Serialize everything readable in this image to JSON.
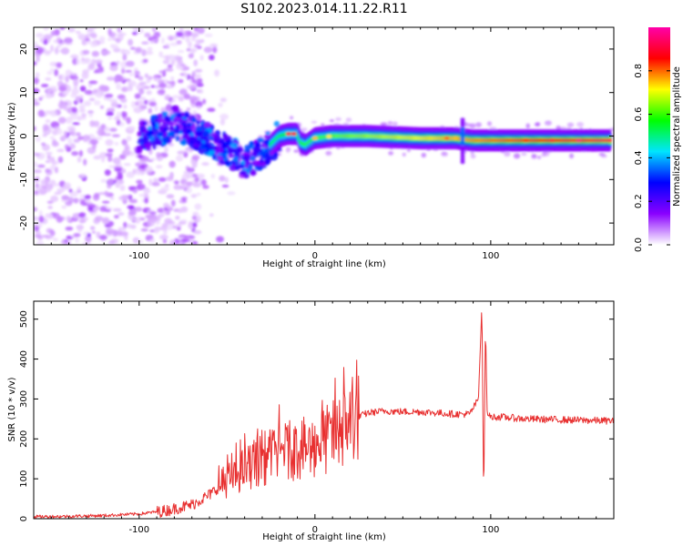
{
  "figure": {
    "title": "S102.2023.014.11.22.R11"
  },
  "chart_data": [
    {
      "type": "heatmap",
      "xlabel": "Height of straight line (km)",
      "ylabel": "Frequency (Hz)",
      "xlim": [
        -160,
        170
      ],
      "ylim": [
        -25,
        25
      ],
      "xticks": [
        -100,
        0,
        100
      ],
      "yticks": [
        -20,
        -10,
        0,
        10,
        20
      ],
      "colorbar": {
        "label": "Normalized spectral amplitude",
        "range": [
          0,
          1
        ],
        "ticks": [
          0.0,
          0.2,
          0.4,
          0.6,
          0.8
        ],
        "ticklabels": [
          "0.0",
          "0.2",
          "0.4",
          "0.6",
          "0.8"
        ],
        "colors": [
          "#ffffff",
          "#8a00ff",
          "#0000ff",
          "#00e5ff",
          "#00ff00",
          "#ffff00",
          "#ff0000",
          "#ff00aa"
        ]
      },
      "ridge": {
        "x": [
          -100,
          -90,
          -80,
          -70,
          -60,
          -50,
          -40,
          -30,
          -25,
          -20,
          -15,
          -10,
          -8,
          -5,
          0,
          10,
          30,
          60,
          80,
          90,
          100,
          130,
          165
        ],
        "freq_hz": [
          0,
          1,
          3,
          1,
          -1,
          -3,
          -6,
          -4,
          -2,
          0,
          0.5,
          0.5,
          -1.5,
          -2,
          -0.5,
          0,
          0,
          -0.5,
          -0.5,
          -1,
          -1,
          -1,
          -1
        ]
      },
      "grid": false
    },
    {
      "type": "line",
      "xlabel": "Height of straight line (km)",
      "ylabel": "SNR (10 * v/v)",
      "xlim": [
        -160,
        170
      ],
      "ylim": [
        0,
        545
      ],
      "xticks": [
        -100,
        0,
        100
      ],
      "yticks": [
        0,
        100,
        200,
        300,
        400,
        500
      ],
      "color": "#e83030",
      "x": [
        -160,
        -140,
        -120,
        -100,
        -85,
        -70,
        -60,
        -52,
        -45,
        -38,
        -30,
        -22,
        -15,
        -8,
        0,
        8,
        15,
        22,
        30,
        40,
        50,
        60,
        70,
        80,
        88,
        93,
        95,
        96,
        97,
        98,
        100,
        105,
        120,
        140,
        170
      ],
      "y": [
        5,
        6,
        8,
        12,
        20,
        35,
        60,
        90,
        110,
        130,
        150,
        160,
        170,
        175,
        180,
        200,
        220,
        250,
        265,
        270,
        268,
        268,
        265,
        262,
        262,
        300,
        540,
        30,
        490,
        260,
        255,
        255,
        250,
        248,
        245
      ],
      "grid": false
    }
  ]
}
